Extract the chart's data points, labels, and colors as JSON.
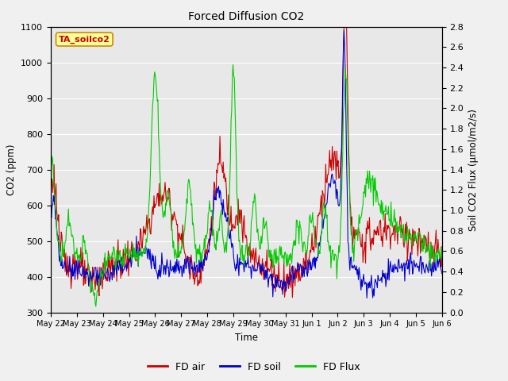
{
  "title": "Forced Diffusion CO2",
  "ylabel_left": "CO2 (ppm)",
  "ylabel_right": "Soil CO2 Flux (μmol/m2/s)",
  "xlabel": "Time",
  "ylim_left": [
    300,
    1100
  ],
  "ylim_right": [
    0.0,
    2.8
  ],
  "yticks_left": [
    300,
    400,
    500,
    600,
    700,
    800,
    900,
    1000,
    1100
  ],
  "yticks_right": [
    0.0,
    0.2,
    0.4,
    0.6,
    0.8,
    1.0,
    1.2,
    1.4,
    1.6,
    1.8,
    2.0,
    2.2,
    2.4,
    2.6,
    2.8
  ],
  "xtick_labels": [
    "May 22",
    "May 23",
    "May 24",
    "May 25",
    "May 26",
    "May 27",
    "May 28",
    "May 29",
    "May 30",
    "May 31",
    "Jun 1",
    "Jun 2",
    "Jun 3",
    "Jun 4",
    "Jun 5",
    "Jun 6"
  ],
  "color_air": "#cc0000",
  "color_soil": "#0000cc",
  "color_flux": "#00cc00",
  "legend_label_air": "FD air",
  "legend_label_soil": "FD soil",
  "legend_label_flux": "FD Flux",
  "annotation_text": "TA_soilco2",
  "annotation_color": "#cc0000",
  "annotation_bg": "#ffff99",
  "annotation_border": "#cc8800",
  "bg_color": "#e8e8e8",
  "fig_bg_color": "#f0f0f0",
  "grid_color": "#ffffff",
  "linewidth": 0.8,
  "n_points": 600
}
